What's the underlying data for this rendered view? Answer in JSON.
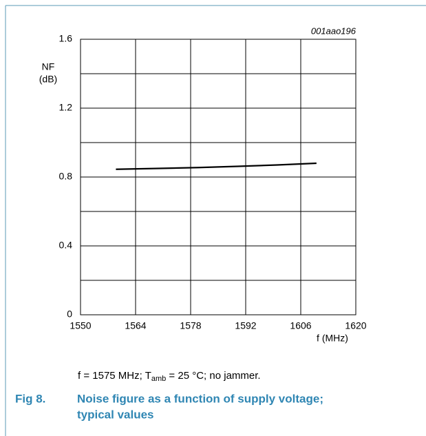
{
  "chart_data": {
    "type": "line",
    "id_label": "001aao196",
    "y_label": [
      "NF",
      "(dB)"
    ],
    "x_label": "f (MHz)",
    "x": [
      1559,
      1570,
      1580,
      1590,
      1600,
      1610
    ],
    "series": [
      {
        "color": "#000000",
        "values": [
          0.845,
          0.85,
          0.855,
          0.862,
          0.87,
          0.88
        ]
      }
    ],
    "xlim": [
      1550,
      1620
    ],
    "xticks": [
      1550,
      1564,
      1578,
      1592,
      1606,
      1620
    ],
    "ylim": [
      0,
      1.6
    ],
    "yticks": [
      0,
      0.4,
      0.8,
      1.2,
      1.6
    ],
    "yminor": [
      0.2,
      0.6,
      1.0,
      1.4
    ],
    "grid": true,
    "caption": [
      "f = 1575 MHz; T",
      "amb",
      " = 25 °C; no jammer."
    ],
    "figure_number": "Fig 8.",
    "figure_title": [
      "Noise figure as a function of supply voltage;",
      "typical values"
    ]
  }
}
